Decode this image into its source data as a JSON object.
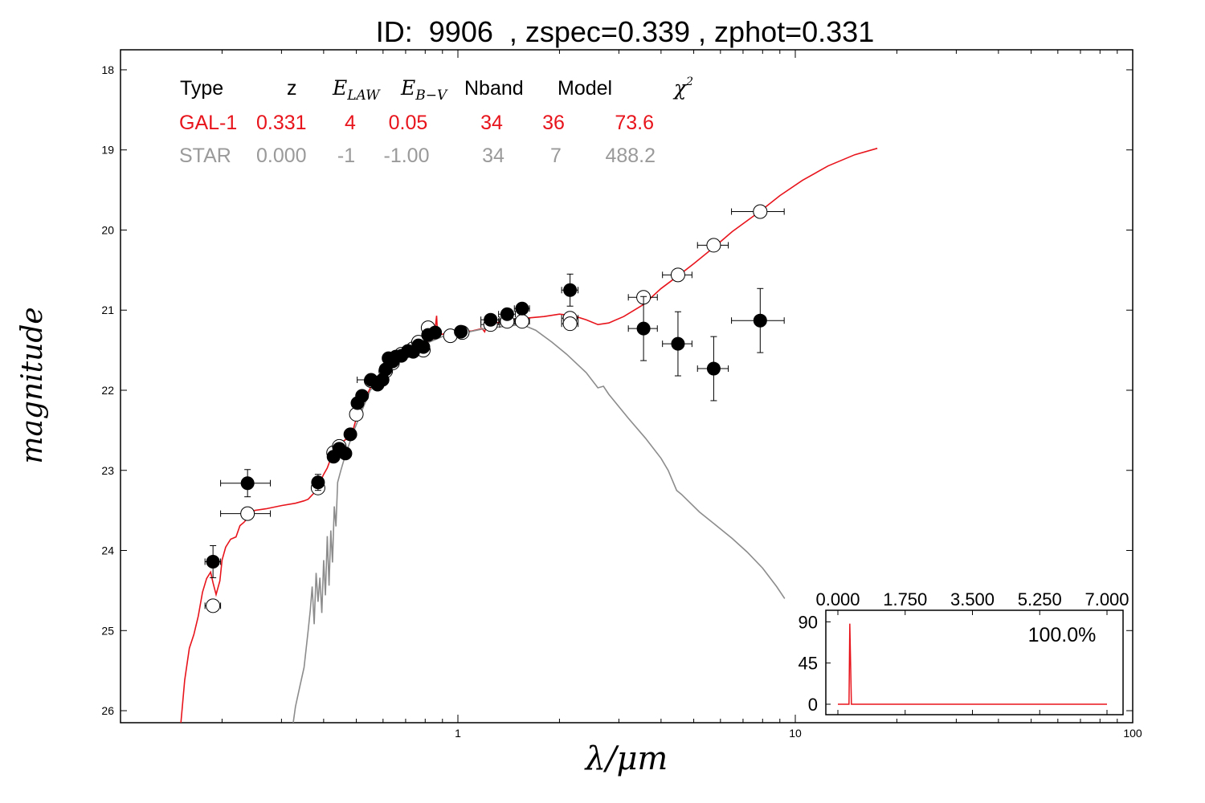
{
  "title": "ID:  9906  , zspec=0.339 , zphot=0.331",
  "axes": {
    "xlabel": "λ/μm",
    "ylabel": "magnitude",
    "x_ticks": [
      "1",
      "10",
      "100"
    ],
    "y_ticks": [
      "18",
      "19",
      "20",
      "21",
      "22",
      "23",
      "24",
      "25",
      "26"
    ]
  },
  "table": {
    "headers": {
      "type": "Type",
      "z": "z",
      "elaw": "E",
      "elaw_sub": "LAW",
      "ebv": "E",
      "ebv_sub": "B−V",
      "nband": "Nband",
      "model": "Model",
      "chi2": "χ",
      "chi2_sup": "2"
    },
    "gal_row": [
      "GAL-1",
      "0.331",
      "4",
      "0.05",
      "34",
      "36",
      "73.6"
    ],
    "star_row": [
      "STAR",
      "0.000",
      "-1",
      "-1.00",
      "34",
      "7",
      "488.2"
    ]
  },
  "inset": {
    "x_ticks": [
      "0.000",
      "1.750",
      "3.500",
      "5.250",
      "7.000"
    ],
    "y_ticks": [
      "90",
      "45",
      "0"
    ],
    "percent_label": "100.0%"
  },
  "colors": {
    "galaxy": "#e8141c",
    "star": "#8c8c8c",
    "gal_text": "#e8141c",
    "star_text": "#9a9a9a"
  },
  "chart_data": {
    "type": "scatter",
    "title": "ID:  9906  , zspec=0.339 , zphot=0.331",
    "xlabel": "λ/μm",
    "ylabel": "magnitude",
    "x_scale": "log",
    "xlim": [
      0.1,
      100
    ],
    "ylim": [
      26.15,
      17.75
    ],
    "grid": false,
    "observed": [
      [
        0.188,
        24.14,
        0.01,
        0.2
      ],
      [
        0.238,
        23.16,
        0.04,
        0.17
      ],
      [
        0.385,
        23.15,
        0.007,
        0.1
      ],
      [
        0.428,
        22.83,
        0.015,
        0.05
      ],
      [
        0.445,
        22.73,
        0.01,
        0.05
      ],
      [
        0.464,
        22.79,
        0.01,
        0.05
      ],
      [
        0.48,
        22.55,
        0.01,
        0.05
      ],
      [
        0.504,
        22.16,
        0.01,
        0.05
      ],
      [
        0.52,
        22.07,
        0.01,
        0.05
      ],
      [
        0.553,
        21.87,
        0.05,
        0.05
      ],
      [
        0.578,
        21.93,
        0.01,
        0.05
      ],
      [
        0.598,
        21.87,
        0.01,
        0.05
      ],
      [
        0.611,
        21.74,
        0.01,
        0.05
      ],
      [
        0.623,
        21.6,
        0.01,
        0.05
      ],
      [
        0.64,
        21.64,
        0.01,
        0.05
      ],
      [
        0.655,
        21.58,
        0.01,
        0.05
      ],
      [
        0.68,
        21.57,
        0.01,
        0.05
      ],
      [
        0.711,
        21.51,
        0.01,
        0.05
      ],
      [
        0.737,
        21.52,
        0.01,
        0.05
      ],
      [
        0.764,
        21.44,
        0.01,
        0.05
      ],
      [
        0.79,
        21.46,
        0.01,
        0.05
      ],
      [
        0.816,
        21.31,
        0.01,
        0.05
      ],
      [
        0.856,
        21.28,
        0.02,
        0.05
      ],
      [
        1.02,
        21.27,
        0.02,
        0.05
      ],
      [
        1.25,
        21.12,
        0.08,
        0.06
      ],
      [
        1.4,
        21.05,
        0.08,
        0.06
      ],
      [
        1.55,
        20.98,
        0.08,
        0.06
      ],
      [
        2.15,
        20.75,
        0.12,
        0.2
      ],
      [
        3.55,
        21.23,
        0.35,
        0.4
      ],
      [
        4.49,
        21.42,
        0.45,
        0.4
      ],
      [
        5.73,
        21.73,
        0.6,
        0.4
      ],
      [
        7.87,
        21.13,
        1.4,
        0.4
      ]
    ],
    "model_points": [
      [
        0.188,
        24.69,
        0.01
      ],
      [
        0.238,
        23.54,
        0.04
      ],
      [
        0.385,
        23.22,
        0.007
      ],
      [
        0.428,
        22.78,
        0.015
      ],
      [
        0.445,
        22.7,
        0.01
      ],
      [
        0.5,
        22.3,
        0.01
      ],
      [
        0.553,
        21.88,
        0.01
      ],
      [
        0.578,
        21.91,
        0.01
      ],
      [
        0.611,
        21.76,
        0.01
      ],
      [
        0.64,
        21.66,
        0.01
      ],
      [
        0.68,
        21.55,
        0.01
      ],
      [
        0.737,
        21.48,
        0.01
      ],
      [
        0.764,
        21.4,
        0.01
      ],
      [
        0.79,
        21.5,
        0.01
      ],
      [
        0.816,
        21.22,
        0.01
      ],
      [
        0.95,
        21.32,
        0.02
      ],
      [
        1.03,
        21.28,
        0.02
      ],
      [
        1.25,
        21.18,
        0.08
      ],
      [
        1.4,
        21.14,
        0.08
      ],
      [
        1.55,
        21.14,
        0.08
      ],
      [
        2.15,
        21.1,
        0.12
      ],
      [
        2.15,
        21.17,
        0.12
      ],
      [
        3.55,
        20.84,
        0.35
      ],
      [
        4.49,
        20.56,
        0.45
      ],
      [
        5.73,
        20.19,
        0.6
      ],
      [
        7.87,
        19.77,
        1.4
      ]
    ],
    "series": [
      {
        "points": [
          [
            0.151,
            26.15
          ],
          [
            0.155,
            25.62
          ],
          [
            0.16,
            25.22
          ],
          [
            0.165,
            25.05
          ],
          [
            0.17,
            24.82
          ],
          [
            0.175,
            24.52
          ],
          [
            0.18,
            24.35
          ],
          [
            0.185,
            24.27
          ],
          [
            0.188,
            24.4
          ],
          [
            0.192,
            24.55
          ],
          [
            0.197,
            24.38
          ],
          [
            0.2,
            24.12
          ],
          [
            0.205,
            23.96
          ],
          [
            0.212,
            23.86
          ],
          [
            0.22,
            23.83
          ],
          [
            0.226,
            23.69
          ],
          [
            0.232,
            23.65
          ],
          [
            0.25,
            23.5
          ],
          [
            0.27,
            23.48
          ],
          [
            0.3,
            23.44
          ],
          [
            0.33,
            23.41
          ],
          [
            0.35,
            23.38
          ],
          [
            0.36,
            23.36
          ],
          [
            0.375,
            23.28
          ],
          [
            0.385,
            23.24
          ],
          [
            0.39,
            23.15
          ],
          [
            0.4,
            23.05
          ],
          [
            0.41,
            22.97
          ],
          [
            0.42,
            22.85
          ],
          [
            0.43,
            22.76
          ],
          [
            0.45,
            22.66
          ],
          [
            0.47,
            22.6
          ],
          [
            0.49,
            22.48
          ],
          [
            0.5,
            22.35
          ],
          [
            0.52,
            22.18
          ],
          [
            0.55,
            21.97
          ],
          [
            0.58,
            21.85
          ],
          [
            0.62,
            21.7
          ],
          [
            0.66,
            21.6
          ],
          [
            0.7,
            21.55
          ],
          [
            0.75,
            21.48
          ],
          [
            0.8,
            21.42
          ],
          [
            0.85,
            21.35
          ],
          [
            0.865,
            21.07
          ],
          [
            0.87,
            21.3
          ],
          [
            0.9,
            21.3
          ],
          [
            1.0,
            21.27
          ],
          [
            1.1,
            21.26
          ],
          [
            1.18,
            21.23
          ],
          [
            1.2,
            21.27
          ],
          [
            1.22,
            21.18
          ],
          [
            1.3,
            21.16
          ],
          [
            1.5,
            21.11
          ],
          [
            1.8,
            21.08
          ],
          [
            2.0,
            21.05
          ],
          [
            2.2,
            21.07
          ],
          [
            2.4,
            21.12
          ],
          [
            2.6,
            21.18
          ],
          [
            2.8,
            21.16
          ],
          [
            3.1,
            21.08
          ],
          [
            3.55,
            20.93
          ],
          [
            4.0,
            20.73
          ],
          [
            4.5,
            20.57
          ],
          [
            5.0,
            20.42
          ],
          [
            5.8,
            20.2
          ],
          [
            6.5,
            20.02
          ],
          [
            7.9,
            19.76
          ],
          [
            9.0,
            19.57
          ],
          [
            10.5,
            19.38
          ],
          [
            12.5,
            19.2
          ],
          [
            15.0,
            19.06
          ],
          [
            17.5,
            18.98
          ]
        ],
        "color": "#e8141c"
      },
      {
        "points": [
          [
            0.325,
            26.15
          ],
          [
            0.33,
            25.95
          ],
          [
            0.34,
            25.7
          ],
          [
            0.35,
            25.46
          ],
          [
            0.36,
            25.0
          ],
          [
            0.365,
            24.75
          ],
          [
            0.37,
            24.45
          ],
          [
            0.375,
            24.92
          ],
          [
            0.38,
            24.28
          ],
          [
            0.385,
            24.64
          ],
          [
            0.39,
            24.34
          ],
          [
            0.395,
            24.78
          ],
          [
            0.4,
            24.12
          ],
          [
            0.405,
            24.56
          ],
          [
            0.41,
            23.82
          ],
          [
            0.415,
            24.44
          ],
          [
            0.42,
            23.75
          ],
          [
            0.425,
            24.15
          ],
          [
            0.43,
            23.45
          ],
          [
            0.435,
            23.7
          ],
          [
            0.44,
            23.15
          ],
          [
            0.45,
            23.0
          ],
          [
            0.46,
            22.86
          ],
          [
            0.47,
            22.74
          ],
          [
            0.49,
            22.52
          ],
          [
            0.52,
            22.25
          ],
          [
            0.55,
            22.0
          ],
          [
            0.6,
            21.82
          ],
          [
            0.65,
            21.65
          ],
          [
            0.7,
            21.53
          ],
          [
            0.8,
            21.42
          ],
          [
            0.9,
            21.33
          ],
          [
            1.0,
            21.3
          ],
          [
            1.2,
            21.23
          ],
          [
            1.4,
            21.2
          ],
          [
            1.55,
            21.18
          ],
          [
            1.7,
            21.25
          ],
          [
            1.9,
            21.4
          ],
          [
            2.1,
            21.55
          ],
          [
            2.4,
            21.78
          ],
          [
            2.6,
            21.97
          ],
          [
            2.7,
            21.95
          ],
          [
            2.8,
            22.05
          ],
          [
            3.2,
            22.35
          ],
          [
            3.6,
            22.6
          ],
          [
            4.0,
            22.85
          ],
          [
            4.2,
            23.0
          ],
          [
            4.45,
            23.25
          ],
          [
            4.6,
            23.3
          ],
          [
            5.2,
            23.52
          ],
          [
            5.8,
            23.68
          ],
          [
            6.5,
            23.85
          ],
          [
            7.2,
            24.02
          ],
          [
            8.0,
            24.22
          ],
          [
            8.8,
            24.45
          ],
          [
            9.3,
            24.6
          ]
        ],
        "color": "#8c8c8c"
      }
    ],
    "table_rows": [
      [
        "Type",
        "z",
        "E_LAW",
        "E_B-V",
        "Nband",
        "Model",
        "χ²"
      ],
      [
        "GAL-1",
        "0.331",
        "4",
        "0.05",
        "34",
        "36",
        "73.6"
      ],
      [
        "STAR",
        "0.000",
        "-1",
        "-1.00",
        "34",
        "7",
        "488.2"
      ]
    ],
    "inset": {
      "type": "line",
      "xlim": [
        0,
        7
      ],
      "ylim": [
        0,
        100
      ],
      "peak": 0.331,
      "peak_value": 88,
      "label": "100.0%"
    }
  }
}
